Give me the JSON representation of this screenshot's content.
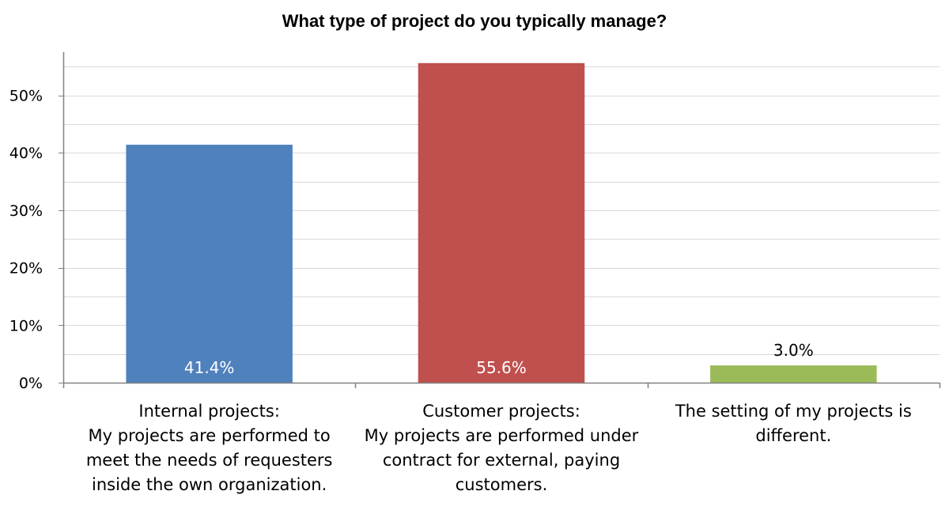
{
  "chart_data": {
    "type": "bar",
    "title": "What type of project do you typically manage?",
    "xlabel": "",
    "ylabel": "",
    "ylim": [
      0,
      57.5
    ],
    "yticks": [
      {
        "value": 0,
        "label": "0%"
      },
      {
        "value": 10,
        "label": "10%"
      },
      {
        "value": 20,
        "label": "20%"
      },
      {
        "value": 30,
        "label": "30%"
      },
      {
        "value": 40,
        "label": "40%"
      },
      {
        "value": 50,
        "label": "50%"
      }
    ],
    "minor_grid_step": 5,
    "grid": true,
    "legend": "none",
    "categories": [
      [
        "Internal projects:",
        "My projects are performed to",
        "meet the needs of requesters",
        "inside the own organization."
      ],
      [
        "Customer projects:",
        "My projects are performed under",
        "contract for external, paying",
        "customers."
      ],
      [
        "The setting of my projects is",
        "different."
      ]
    ],
    "values": [
      41.4,
      55.6,
      3.0
    ],
    "data_labels": [
      "41.4%",
      "55.6%",
      "3.0%"
    ],
    "data_label_position": [
      "inside-base",
      "inside-base",
      "above"
    ],
    "colors": [
      "#4f81bd",
      "#c0504d",
      "#9bbb59"
    ],
    "data_label_colors": [
      "#ffffff",
      "#ffffff",
      "#000000"
    ],
    "grid_color": "#d9d9d9",
    "axis_color": "#808080"
  }
}
